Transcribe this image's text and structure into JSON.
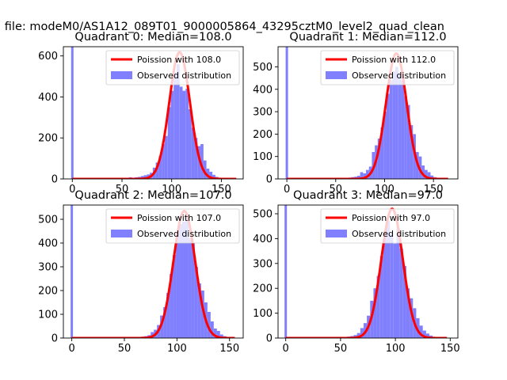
{
  "figure": {
    "suptitle": "n file: modeM0/AS1A12_089T01_9000005864_43295cztM0_level2_quad_clean"
  },
  "colors": {
    "fit_line": "#ff0000",
    "hist_fill": "#8080ff",
    "hist_edge": "#7070f0",
    "axis": "#000000",
    "background": "#ffffff"
  },
  "chart_data": [
    {
      "type": "bar",
      "title": "Quadrant 0: Median=108.0",
      "xlim": [
        -9,
        172
      ],
      "ylim": [
        0,
        645
      ],
      "xticks": [
        0,
        50,
        100,
        150
      ],
      "yticks": [
        0,
        200,
        400,
        600
      ],
      "legend": {
        "placement": "top-right",
        "entries": [
          "Poission with 108.0",
          "Observed distribution"
        ]
      },
      "zero_spike": 645,
      "histogram": {
        "name": "Observed distribution",
        "bins": [
          [
            54,
            57,
            5
          ],
          [
            57,
            60,
            8
          ],
          [
            60,
            63,
            6
          ],
          [
            63,
            66,
            8
          ],
          [
            66,
            69,
            10
          ],
          [
            69,
            72,
            14
          ],
          [
            72,
            75,
            18
          ],
          [
            75,
            78,
            22
          ],
          [
            78,
            81,
            30
          ],
          [
            81,
            84,
            55
          ],
          [
            84,
            87,
            80
          ],
          [
            87,
            90,
            110
          ],
          [
            90,
            93,
            170
          ],
          [
            93,
            96,
            210
          ],
          [
            96,
            99,
            350
          ],
          [
            99,
            102,
            430
          ],
          [
            102,
            105,
            520
          ],
          [
            105,
            108,
            560
          ],
          [
            108,
            111,
            450
          ],
          [
            111,
            114,
            430
          ],
          [
            114,
            117,
            440
          ],
          [
            117,
            120,
            340
          ],
          [
            120,
            123,
            250
          ],
          [
            123,
            126,
            200
          ],
          [
            126,
            129,
            160
          ],
          [
            129,
            132,
            170
          ],
          [
            132,
            135,
            90
          ],
          [
            135,
            138,
            50
          ],
          [
            138,
            141,
            35
          ],
          [
            141,
            144,
            20
          ],
          [
            144,
            147,
            10
          ],
          [
            147,
            150,
            5
          ],
          [
            150,
            153,
            4
          ],
          [
            153,
            156,
            3
          ]
        ]
      },
      "poisson": {
        "name": "Poission with 108.0",
        "lambda": 108.0,
        "peak": 618,
        "x_range": [
          0,
          165
        ]
      }
    },
    {
      "type": "bar",
      "title": "Quadrant 1: Median=112.0",
      "xlim": [
        -9,
        175
      ],
      "ylim": [
        0,
        590
      ],
      "xticks": [
        0,
        50,
        100,
        150
      ],
      "yticks": [
        0,
        100,
        200,
        300,
        400,
        500
      ],
      "legend": {
        "placement": "top-right",
        "entries": [
          "Poission with 112.0",
          "Observed distribution"
        ]
      },
      "zero_spike": 590,
      "histogram": {
        "name": "Observed distribution",
        "bins": [
          [
            60,
            63,
            4
          ],
          [
            63,
            66,
            6
          ],
          [
            66,
            69,
            8
          ],
          [
            69,
            72,
            10
          ],
          [
            72,
            75,
            14
          ],
          [
            75,
            78,
            30
          ],
          [
            78,
            81,
            25
          ],
          [
            81,
            84,
            40
          ],
          [
            84,
            87,
            55
          ],
          [
            87,
            90,
            120
          ],
          [
            90,
            93,
            150
          ],
          [
            93,
            96,
            180
          ],
          [
            96,
            99,
            230
          ],
          [
            99,
            102,
            300
          ],
          [
            102,
            105,
            380
          ],
          [
            105,
            108,
            440
          ],
          [
            108,
            111,
            480
          ],
          [
            111,
            114,
            500
          ],
          [
            114,
            117,
            470
          ],
          [
            117,
            120,
            440
          ],
          [
            120,
            123,
            370
          ],
          [
            123,
            126,
            330
          ],
          [
            126,
            129,
            240
          ],
          [
            129,
            132,
            200
          ],
          [
            132,
            135,
            120
          ],
          [
            135,
            138,
            100
          ],
          [
            138,
            141,
            60
          ],
          [
            141,
            144,
            40
          ],
          [
            144,
            147,
            30
          ],
          [
            147,
            150,
            15
          ],
          [
            150,
            153,
            8
          ],
          [
            153,
            156,
            5
          ]
        ]
      },
      "poisson": {
        "name": "Poission with 112.0",
        "lambda": 112.0,
        "peak": 560,
        "x_range": [
          0,
          165
        ]
      }
    },
    {
      "type": "bar",
      "title": "Quadrant 2: Median=107.0",
      "xlim": [
        -8,
        163
      ],
      "ylim": [
        0,
        560
      ],
      "xticks": [
        0,
        50,
        100,
        150
      ],
      "yticks": [
        0,
        100,
        200,
        300,
        400,
        500
      ],
      "legend": {
        "placement": "top-right",
        "entries": [
          "Poission with 107.0",
          "Observed distribution"
        ]
      },
      "zero_spike": 560,
      "histogram": {
        "name": "Observed distribution",
        "bins": [
          [
            60,
            63,
            3
          ],
          [
            63,
            66,
            4
          ],
          [
            66,
            69,
            6
          ],
          [
            69,
            72,
            8
          ],
          [
            72,
            75,
            12
          ],
          [
            75,
            78,
            25
          ],
          [
            78,
            81,
            35
          ],
          [
            81,
            84,
            55
          ],
          [
            84,
            87,
            95
          ],
          [
            87,
            90,
            130
          ],
          [
            90,
            93,
            190
          ],
          [
            93,
            96,
            270
          ],
          [
            96,
            99,
            350
          ],
          [
            99,
            102,
            440
          ],
          [
            102,
            105,
            480
          ],
          [
            105,
            108,
            490
          ],
          [
            108,
            111,
            510
          ],
          [
            111,
            114,
            420
          ],
          [
            114,
            117,
            400
          ],
          [
            117,
            120,
            300
          ],
          [
            120,
            123,
            230
          ],
          [
            123,
            126,
            200
          ],
          [
            126,
            129,
            150
          ],
          [
            129,
            132,
            110
          ],
          [
            132,
            135,
            70
          ],
          [
            135,
            138,
            40
          ],
          [
            138,
            141,
            30
          ],
          [
            141,
            144,
            15
          ],
          [
            144,
            147,
            8
          ],
          [
            147,
            150,
            5
          ]
        ]
      },
      "poisson": {
        "name": "Poission with 107.0",
        "lambda": 107.0,
        "peak": 535,
        "x_range": [
          0,
          155
        ]
      }
    },
    {
      "type": "bar",
      "title": "Quadrant 3: Median=97.0",
      "xlim": [
        -7,
        157
      ],
      "ylim": [
        0,
        535
      ],
      "xticks": [
        0,
        50,
        100,
        150
      ],
      "yticks": [
        0,
        100,
        200,
        300,
        400,
        500
      ],
      "legend": {
        "placement": "top-right",
        "entries": [
          "Poission with 97.0",
          "Observed distribution"
        ]
      },
      "zero_spike": 535,
      "histogram": {
        "name": "Observed distribution",
        "bins": [
          [
            50,
            53,
            3
          ],
          [
            53,
            56,
            4
          ],
          [
            56,
            59,
            6
          ],
          [
            59,
            62,
            8
          ],
          [
            62,
            65,
            12
          ],
          [
            65,
            68,
            20
          ],
          [
            68,
            71,
            40
          ],
          [
            71,
            74,
            60
          ],
          [
            74,
            77,
            90
          ],
          [
            77,
            80,
            150
          ],
          [
            80,
            83,
            200
          ],
          [
            83,
            86,
            250
          ],
          [
            86,
            89,
            330
          ],
          [
            89,
            92,
            430
          ],
          [
            92,
            95,
            470
          ],
          [
            95,
            98,
            420
          ],
          [
            98,
            101,
            380
          ],
          [
            101,
            104,
            440
          ],
          [
            104,
            107,
            360
          ],
          [
            107,
            110,
            290
          ],
          [
            110,
            113,
            200
          ],
          [
            113,
            116,
            160
          ],
          [
            116,
            119,
            120
          ],
          [
            119,
            122,
            80
          ],
          [
            122,
            125,
            50
          ],
          [
            125,
            128,
            30
          ],
          [
            128,
            131,
            18
          ],
          [
            131,
            134,
            10
          ],
          [
            134,
            137,
            5
          ]
        ]
      },
      "poisson": {
        "name": "Poission with 97.0",
        "lambda": 97.0,
        "peak": 520,
        "x_range": [
          0,
          147
        ]
      }
    }
  ]
}
